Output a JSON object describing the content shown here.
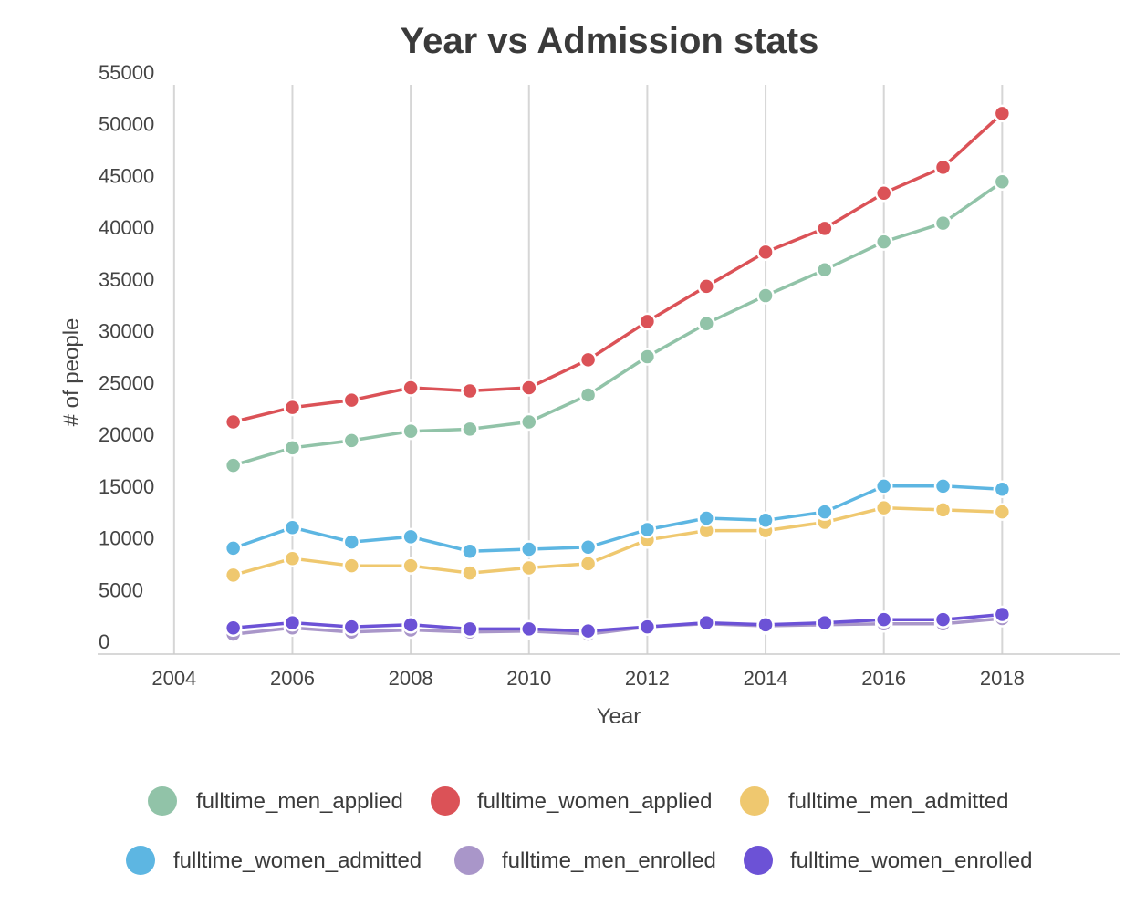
{
  "chart_data": {
    "type": "line",
    "title": "Year vs Admission stats",
    "xlabel": "Year",
    "ylabel": "# of people",
    "xlim": [
      2003,
      2020
    ],
    "ylim": [
      -1000,
      55000
    ],
    "x_ticks": [
      2004,
      2006,
      2008,
      2010,
      2012,
      2014,
      2016,
      2018
    ],
    "y_ticks": [
      0,
      5000,
      10000,
      15000,
      20000,
      25000,
      30000,
      35000,
      40000,
      45000,
      50000,
      55000
    ],
    "grid": "vertical",
    "legend_position": "bottom",
    "x": [
      2005,
      2006,
      2007,
      2008,
      2009,
      2010,
      2011,
      2012,
      2013,
      2014,
      2015,
      2016,
      2017,
      2018
    ],
    "series": [
      {
        "name": "fulltime_men_applied",
        "color": "#91c3a8",
        "values": [
          17000,
          18700,
          19400,
          20300,
          20500,
          21200,
          23800,
          27500,
          30700,
          33400,
          35900,
          38600,
          40400,
          44400
        ]
      },
      {
        "name": "fulltime_women_applied",
        "color": "#db5257",
        "values": [
          21200,
          22600,
          23300,
          24500,
          24200,
          24500,
          27200,
          30900,
          34300,
          37600,
          39900,
          43300,
          45800,
          51000
        ]
      },
      {
        "name": "fulltime_men_admitted",
        "color": "#efc86f",
        "values": [
          6400,
          8000,
          7300,
          7300,
          6600,
          7100,
          7500,
          9800,
          10700,
          10700,
          11500,
          12900,
          12700,
          12500
        ]
      },
      {
        "name": "fulltime_women_admitted",
        "color": "#5db6e2",
        "values": [
          9000,
          11000,
          9600,
          10100,
          8700,
          8900,
          9100,
          10800,
          11900,
          11700,
          12500,
          15000,
          15000,
          14700
        ]
      },
      {
        "name": "fulltime_men_enrolled",
        "color": "#a996c9",
        "values": [
          700,
          1300,
          900,
          1100,
          900,
          1000,
          700,
          1400,
          1700,
          1500,
          1600,
          1700,
          1700,
          2200
        ]
      },
      {
        "name": "fulltime_women_enrolled",
        "color": "#6c52d6",
        "values": [
          1300,
          1800,
          1400,
          1600,
          1200,
          1200,
          1000,
          1400,
          1800,
          1600,
          1800,
          2100,
          2100,
          2600
        ]
      }
    ]
  }
}
